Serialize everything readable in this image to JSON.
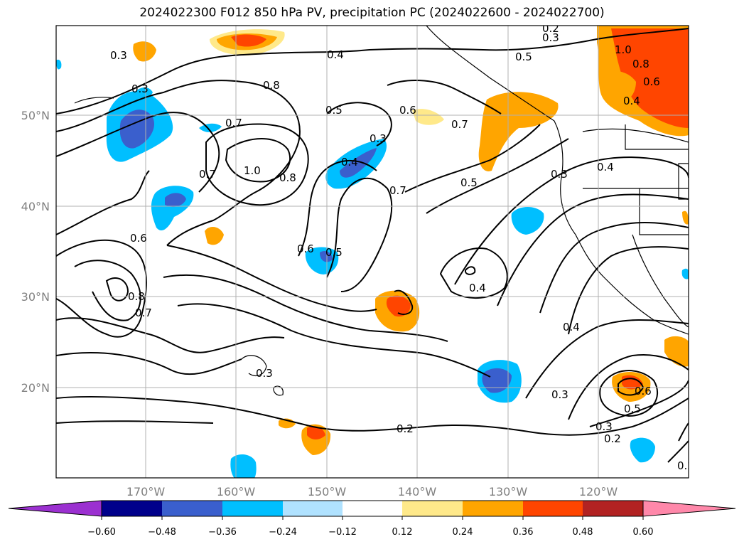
{
  "title": "2024022300 F012 850 hPa PV, precipitation PC (2024022600 - 2024022700)",
  "lon_ticks": [
    "170°W",
    "160°W",
    "150°W",
    "140°W",
    "130°W",
    "120°W"
  ],
  "lat_ticks": [
    "50°N",
    "40°N",
    "30°N",
    "20°N"
  ],
  "contour_labels": [
    "0.2",
    "0.3",
    "0.4",
    "0.5",
    "0.6",
    "0.7",
    "0.8",
    "1.0"
  ],
  "colorbar": {
    "ticks": [
      "−0.60",
      "−0.48",
      "−0.36",
      "−0.24",
      "−0.12",
      "0.12",
      "0.24",
      "0.36",
      "0.48",
      "0.60"
    ],
    "colors": [
      "#9b30d0",
      "#00008b",
      "#3a5fcd",
      "#00bfff",
      "#b0e2ff",
      "#ffffff",
      "#ffe98a",
      "#ffa500",
      "#ff4500",
      "#b22222",
      "#ff88aa"
    ]
  }
}
